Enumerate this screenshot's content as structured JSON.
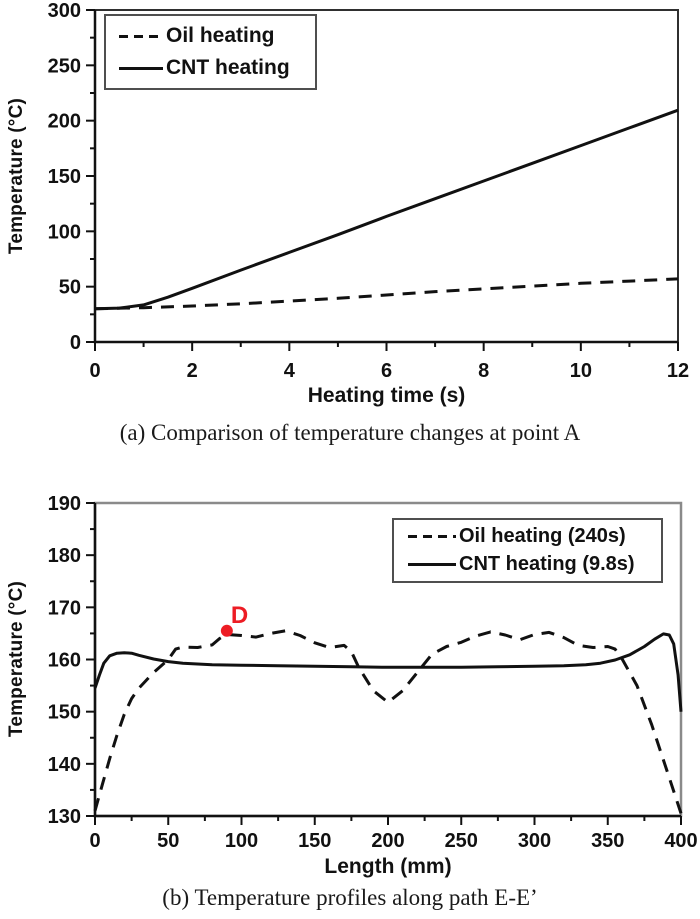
{
  "captions": {
    "a": "(a) Comparison of temperature changes at point A",
    "b": "(b) Temperature profiles along path E-E’"
  },
  "colors": {
    "line": "#111111",
    "axis": "#111111",
    "box_a": "#2f2f2f",
    "box_b": "#8a8a8a",
    "legend_border": "#4f4f4f",
    "annotation_red": "#ed1c24"
  },
  "chart_data": [
    {
      "id": "a",
      "type": "line",
      "title": "",
      "xlabel": "Heating time (s)",
      "ylabel": "Temperature (°C)",
      "xlim": [
        0,
        12
      ],
      "xtick_step": 2,
      "xminor_step": 1,
      "ylim": [
        0,
        300
      ],
      "ytick_step": 50,
      "yminor_step": 25,
      "grid": false,
      "legend": {
        "position": "top-left",
        "entries": [
          {
            "name": "Oil heating",
            "style": "dashed"
          },
          {
            "name": "CNT heating",
            "style": "solid"
          }
        ]
      },
      "series": [
        {
          "name": "Oil heating",
          "style": "dashed",
          "x": [
            0,
            1,
            2,
            3,
            4,
            5,
            6,
            7,
            8,
            9,
            10,
            11,
            12
          ],
          "y": [
            30,
            31,
            32.5,
            34.5,
            37,
            39.5,
            42.5,
            45.5,
            48,
            50.5,
            53,
            55,
            57
          ]
        },
        {
          "name": "CNT heating",
          "style": "solid",
          "x": [
            0,
            0.5,
            1,
            1.5,
            2,
            3,
            4,
            5,
            6,
            7,
            8,
            9,
            10,
            11,
            12
          ],
          "y": [
            30,
            30.6,
            33.5,
            40.5,
            48.5,
            65,
            81,
            97,
            113.5,
            129.5,
            145.5,
            161.5,
            177.5,
            193.5,
            209.5
          ]
        }
      ]
    },
    {
      "id": "b",
      "type": "line",
      "title": "",
      "xlabel": "Length (mm)",
      "ylabel": "Temperature (°C)",
      "xlim": [
        0,
        400
      ],
      "xtick_step": 50,
      "xminor_step": 25,
      "ylim": [
        130,
        190
      ],
      "ytick_step": 10,
      "yminor_step": 5,
      "grid": false,
      "legend": {
        "position": "top-right",
        "entries": [
          {
            "name": "Oil heating (240s)",
            "style": "dashed"
          },
          {
            "name": "CNT heating (9.8s)",
            "style": "solid"
          }
        ]
      },
      "annotation": {
        "label": "D",
        "x": 90,
        "y": 165.5,
        "color": "#ed1c24"
      },
      "series": [
        {
          "name": "Oil heating (240s)",
          "style": "dashed",
          "x": [
            0,
            5,
            10,
            15,
            20,
            25,
            30,
            40,
            50,
            55,
            60,
            70,
            80,
            85,
            90,
            100,
            110,
            120,
            130,
            140,
            150,
            160,
            170,
            175,
            180,
            190,
            200,
            210,
            220,
            230,
            240,
            250,
            260,
            270,
            280,
            290,
            300,
            310,
            320,
            330,
            340,
            350,
            355,
            360,
            370,
            380,
            390,
            400
          ],
          "y": [
            131,
            136,
            141,
            145.5,
            149.5,
            152.5,
            154.5,
            157.5,
            160,
            162,
            162.4,
            162.3,
            162.8,
            164,
            164.8,
            164.6,
            164.3,
            165,
            165.5,
            164.6,
            163.2,
            162.3,
            162.7,
            161.5,
            158.5,
            154,
            151.8,
            154,
            157.5,
            161,
            162.5,
            163.3,
            164.5,
            165.3,
            164.7,
            163.8,
            164.8,
            165.2,
            164.2,
            162.7,
            162.3,
            162.5,
            162,
            160,
            155,
            147.5,
            139,
            130.5
          ]
        },
        {
          "name": "CNT heating (9.8s)",
          "style": "solid",
          "x": [
            0,
            3,
            6,
            10,
            15,
            20,
            25,
            30,
            40,
            50,
            60,
            80,
            100,
            125,
            150,
            175,
            200,
            225,
            250,
            275,
            300,
            320,
            335,
            345,
            355,
            365,
            375,
            382,
            388,
            392,
            395,
            398,
            400
          ],
          "y": [
            154.5,
            157,
            159.3,
            160.7,
            161.2,
            161.3,
            161.2,
            160.8,
            160.1,
            159.6,
            159.3,
            159,
            158.9,
            158.8,
            158.7,
            158.6,
            158.5,
            158.5,
            158.5,
            158.6,
            158.7,
            158.8,
            159,
            159.3,
            159.9,
            160.9,
            162.5,
            163.9,
            164.9,
            164.7,
            163,
            157,
            150
          ]
        }
      ]
    }
  ]
}
